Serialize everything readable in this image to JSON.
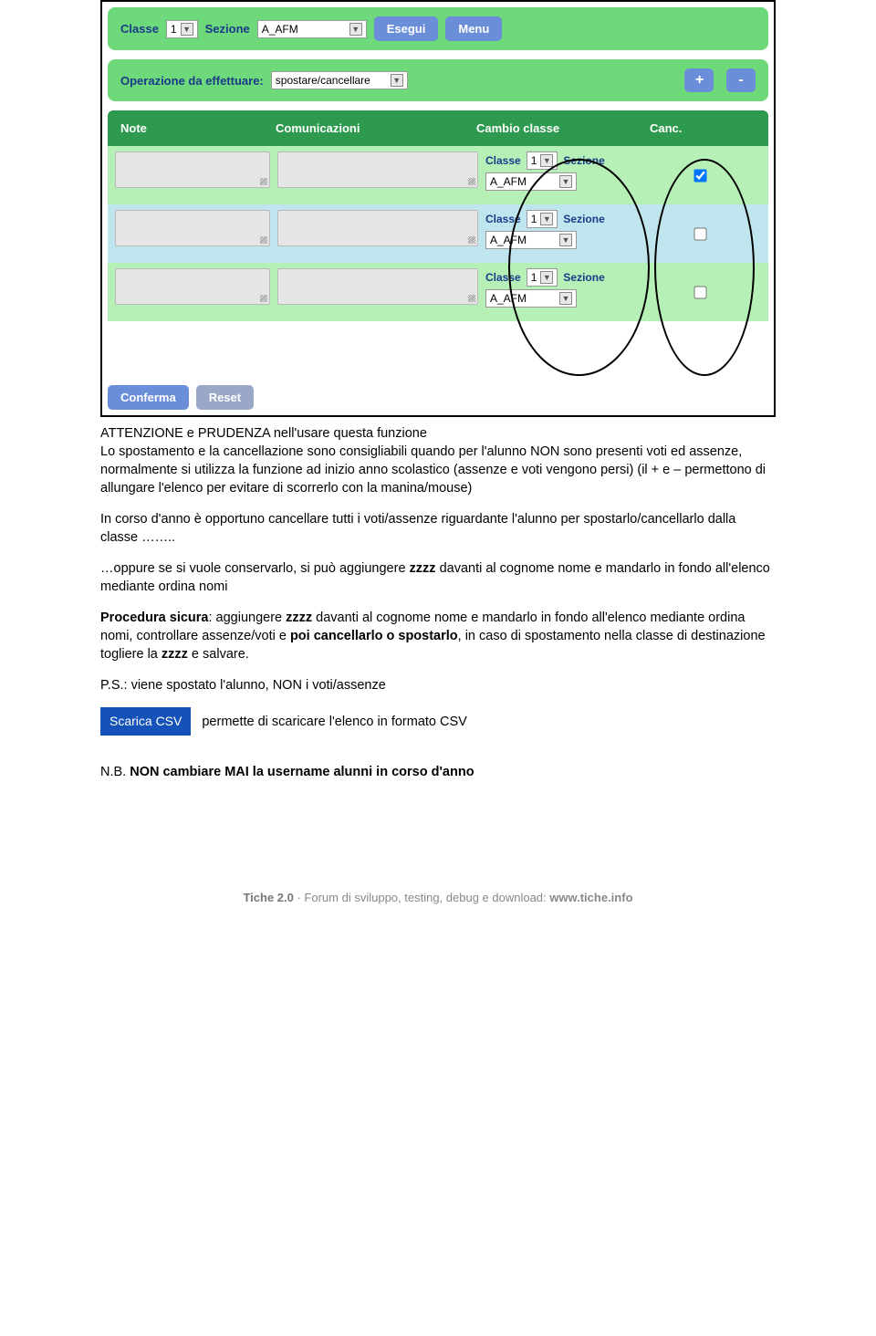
{
  "colors": {
    "panel_green": "#6dd97a",
    "header_green": "#2e9a4f",
    "row_green": "#b7f0b7",
    "row_blue": "#bfe6ee",
    "btn_blue": "#6a8fd8",
    "btn_scarica": "#1451b8",
    "label_blue": "#1a3a8a"
  },
  "top_panel": {
    "classe_label": "Classe",
    "classe_value": "1",
    "sezione_label": "Sezione",
    "sezione_value": "A_AFM",
    "esegui": "Esegui",
    "menu": "Menu"
  },
  "op_panel": {
    "label": "Operazione da effettuare:",
    "value": "spostare/cancellare",
    "plus": "+",
    "minus": "-"
  },
  "table": {
    "headers": {
      "note": "Note",
      "com": "Comunicazioni",
      "cambio": "Cambio classe",
      "canc": "Canc."
    },
    "row_template": {
      "classe_label": "Classe",
      "classe_value": "1",
      "sezione_label": "Sezione",
      "sezione_value": "A_AFM"
    },
    "rows": [
      {
        "bg": "row-green",
        "checked": true
      },
      {
        "bg": "row-blue",
        "checked": false
      },
      {
        "bg": "row-green",
        "checked": false
      }
    ]
  },
  "bottom_btns": {
    "conferma": "Conferma",
    "reset": "Reset"
  },
  "doc": {
    "p1_line1": "ATTENZIONE e PRUDENZA nell'usare questa funzione",
    "p1_line2": "Lo spostamento e la cancellazione sono consigliabili quando per l'alunno NON sono presenti voti ed assenze, normalmente si utilizza la funzione ad inizio anno scolastico (assenze e voti vengono persi) (il + e – permettono di allungare l'elenco per evitare di scorrerlo con la manina/mouse)",
    "p2": "In corso d'anno è opportuno cancellare tutti i voti/assenze riguardante l'alunno per spostarlo/cancellarlo dalla classe ……..",
    "p3_a": "…oppure se si vuole conservarlo, si può aggiungere ",
    "p3_z": "zzzz",
    "p3_b": " davanti al cognome nome e mandarlo in fondo all'elenco mediante ordina nomi",
    "p4_lead": "Procedura sicura",
    "p4_a": ": aggiungere ",
    "p4_z1": "zzzz",
    "p4_b": " davanti al cognome nome e mandarlo in fondo all'elenco mediante ordina nomi, controllare assenze/voti e  ",
    "p4_bold": "poi cancellarlo o spostarlo",
    "p4_c": ", in caso di spostamento nella classe di destinazione togliere la ",
    "p4_z2": "zzzz",
    "p4_d": " e salvare.",
    "ps": "P.S.: viene spostato l'alunno, NON i voti/assenze",
    "scarica_btn": "Scarica CSV",
    "scarica_text": "permette di scaricare l'elenco in formato CSV",
    "nb_lead": "N.B. ",
    "nb_bold": "NON cambiare MAI la username alunni in corso d'anno"
  },
  "footer": {
    "a": "Tiche 2.0",
    "b": " · Forum di sviluppo, testing, debug e download: ",
    "c": "www.tiche.info"
  }
}
